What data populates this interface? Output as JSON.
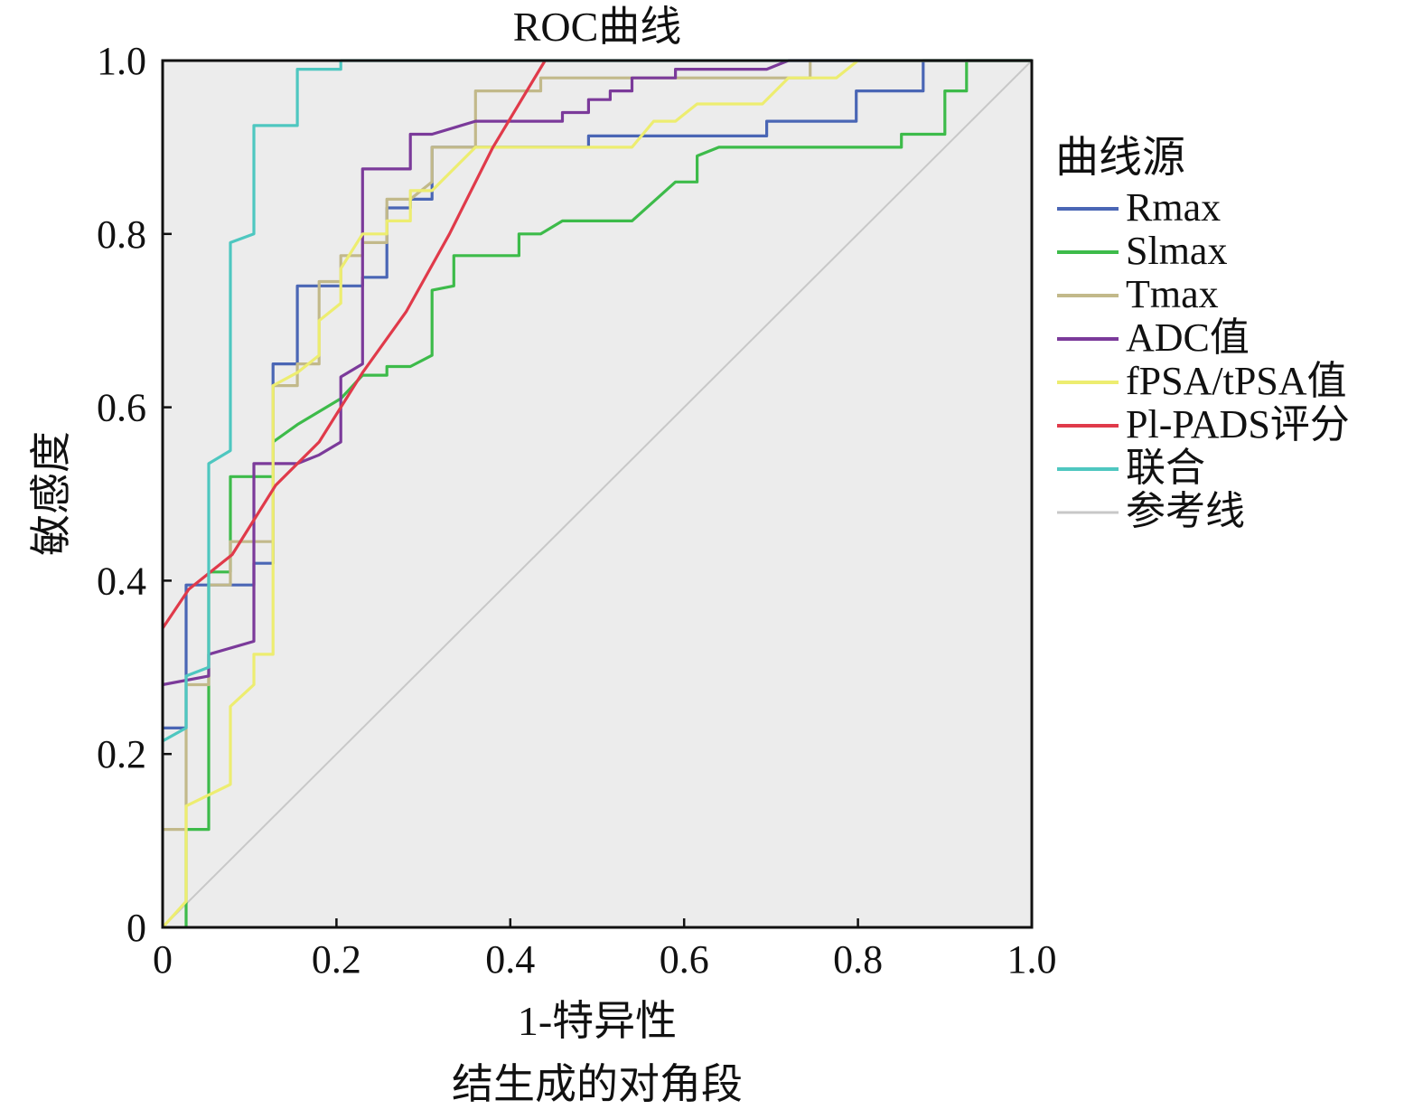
{
  "chart_data": {
    "type": "line",
    "title": "ROC曲线",
    "xlabel": "1-特异性",
    "xlabel_note": "结生成的对角段",
    "ylabel": "敏感度",
    "xlim": [
      0,
      1
    ],
    "ylim": [
      0,
      1
    ],
    "xticks": [
      {
        "value": 0,
        "label": "0"
      },
      {
        "value": 0.2,
        "label": "0.2"
      },
      {
        "value": 0.4,
        "label": "0.4"
      },
      {
        "value": 0.6,
        "label": "0.6"
      },
      {
        "value": 0.8,
        "label": "0.8"
      },
      {
        "value": 1.0,
        "label": "1.0"
      }
    ],
    "yticks": [
      {
        "value": 0,
        "label": "0"
      },
      {
        "value": 0.2,
        "label": "0.2"
      },
      {
        "value": 0.4,
        "label": "0.4"
      },
      {
        "value": 0.6,
        "label": "0.6"
      },
      {
        "value": 0.8,
        "label": "0.8"
      },
      {
        "value": 1.0,
        "label": "1.0"
      }
    ],
    "grid": false,
    "plot_background": "#ececec",
    "legend": {
      "title": "曲线源",
      "position": "right"
    },
    "series": [
      {
        "name": "Rmax",
        "color": "#4a66b5",
        "points": [
          [
            0,
            0.23
          ],
          [
            0.027,
            0.23
          ],
          [
            0.027,
            0.395
          ],
          [
            0.105,
            0.395
          ],
          [
            0.105,
            0.42
          ],
          [
            0.127,
            0.42
          ],
          [
            0.127,
            0.65
          ],
          [
            0.155,
            0.65
          ],
          [
            0.155,
            0.74
          ],
          [
            0.23,
            0.74
          ],
          [
            0.23,
            0.75
          ],
          [
            0.258,
            0.75
          ],
          [
            0.258,
            0.83
          ],
          [
            0.285,
            0.83
          ],
          [
            0.285,
            0.84
          ],
          [
            0.31,
            0.84
          ],
          [
            0.31,
            0.9
          ],
          [
            0.49,
            0.9
          ],
          [
            0.49,
            0.913
          ],
          [
            0.695,
            0.913
          ],
          [
            0.695,
            0.93
          ],
          [
            0.798,
            0.93
          ],
          [
            0.798,
            0.965
          ],
          [
            0.875,
            0.965
          ],
          [
            0.875,
            1.0
          ],
          [
            1.0,
            1.0
          ]
        ]
      },
      {
        "name": "Slmax",
        "color": "#3dbb4a",
        "points": [
          [
            0.027,
            0
          ],
          [
            0.027,
            0.113
          ],
          [
            0.053,
            0.113
          ],
          [
            0.053,
            0.41
          ],
          [
            0.078,
            0.41
          ],
          [
            0.078,
            0.52
          ],
          [
            0.127,
            0.52
          ],
          [
            0.127,
            0.56
          ],
          [
            0.155,
            0.58
          ],
          [
            0.205,
            0.61
          ],
          [
            0.23,
            0.637
          ],
          [
            0.258,
            0.637
          ],
          [
            0.258,
            0.647
          ],
          [
            0.285,
            0.647
          ],
          [
            0.31,
            0.66
          ],
          [
            0.31,
            0.735
          ],
          [
            0.335,
            0.74
          ],
          [
            0.335,
            0.775
          ],
          [
            0.41,
            0.775
          ],
          [
            0.41,
            0.8
          ],
          [
            0.435,
            0.8
          ],
          [
            0.46,
            0.815
          ],
          [
            0.54,
            0.815
          ],
          [
            0.59,
            0.86
          ],
          [
            0.615,
            0.86
          ],
          [
            0.615,
            0.89
          ],
          [
            0.64,
            0.9
          ],
          [
            0.85,
            0.9
          ],
          [
            0.85,
            0.915
          ],
          [
            0.9,
            0.915
          ],
          [
            0.9,
            0.93
          ],
          [
            0.9,
            0.965
          ],
          [
            0.925,
            0.965
          ],
          [
            0.925,
            1.0
          ],
          [
            1.0,
            1.0
          ]
        ]
      },
      {
        "name": "Tmax",
        "color": "#c2b98a",
        "points": [
          [
            0,
            0.113
          ],
          [
            0.027,
            0.113
          ],
          [
            0.027,
            0.28
          ],
          [
            0.053,
            0.28
          ],
          [
            0.053,
            0.395
          ],
          [
            0.078,
            0.395
          ],
          [
            0.078,
            0.445
          ],
          [
            0.127,
            0.445
          ],
          [
            0.127,
            0.625
          ],
          [
            0.155,
            0.625
          ],
          [
            0.155,
            0.65
          ],
          [
            0.18,
            0.65
          ],
          [
            0.18,
            0.745
          ],
          [
            0.205,
            0.745
          ],
          [
            0.205,
            0.775
          ],
          [
            0.23,
            0.775
          ],
          [
            0.23,
            0.79
          ],
          [
            0.258,
            0.79
          ],
          [
            0.258,
            0.84
          ],
          [
            0.285,
            0.84
          ],
          [
            0.31,
            0.86
          ],
          [
            0.31,
            0.9
          ],
          [
            0.36,
            0.9
          ],
          [
            0.36,
            0.965
          ],
          [
            0.435,
            0.965
          ],
          [
            0.435,
            0.98
          ],
          [
            0.745,
            0.98
          ],
          [
            0.745,
            1.0
          ],
          [
            1.0,
            1.0
          ]
        ]
      },
      {
        "name": "ADC值",
        "color": "#7b3a9a",
        "points": [
          [
            0,
            0.28
          ],
          [
            0.053,
            0.29
          ],
          [
            0.053,
            0.315
          ],
          [
            0.105,
            0.33
          ],
          [
            0.105,
            0.535
          ],
          [
            0.155,
            0.535
          ],
          [
            0.18,
            0.545
          ],
          [
            0.205,
            0.56
          ],
          [
            0.205,
            0.635
          ],
          [
            0.23,
            0.65
          ],
          [
            0.23,
            0.875
          ],
          [
            0.285,
            0.875
          ],
          [
            0.285,
            0.915
          ],
          [
            0.31,
            0.915
          ],
          [
            0.36,
            0.93
          ],
          [
            0.46,
            0.93
          ],
          [
            0.46,
            0.94
          ],
          [
            0.49,
            0.94
          ],
          [
            0.49,
            0.955
          ],
          [
            0.515,
            0.955
          ],
          [
            0.515,
            0.965
          ],
          [
            0.54,
            0.965
          ],
          [
            0.54,
            0.98
          ],
          [
            0.59,
            0.98
          ],
          [
            0.59,
            0.99
          ],
          [
            0.695,
            0.99
          ],
          [
            0.72,
            1.0
          ],
          [
            1.0,
            1.0
          ]
        ]
      },
      {
        "name": "fPSA/tPSA值",
        "color": "#eded70",
        "points": [
          [
            0,
            0
          ],
          [
            0.027,
            0.03
          ],
          [
            0.027,
            0.14
          ],
          [
            0.078,
            0.165
          ],
          [
            0.078,
            0.255
          ],
          [
            0.105,
            0.28
          ],
          [
            0.105,
            0.315
          ],
          [
            0.127,
            0.315
          ],
          [
            0.127,
            0.625
          ],
          [
            0.155,
            0.64
          ],
          [
            0.18,
            0.66
          ],
          [
            0.18,
            0.7
          ],
          [
            0.205,
            0.72
          ],
          [
            0.205,
            0.76
          ],
          [
            0.23,
            0.8
          ],
          [
            0.258,
            0.8
          ],
          [
            0.258,
            0.815
          ],
          [
            0.285,
            0.815
          ],
          [
            0.285,
            0.85
          ],
          [
            0.31,
            0.85
          ],
          [
            0.36,
            0.9
          ],
          [
            0.54,
            0.9
          ],
          [
            0.565,
            0.93
          ],
          [
            0.59,
            0.93
          ],
          [
            0.615,
            0.95
          ],
          [
            0.69,
            0.95
          ],
          [
            0.72,
            0.98
          ],
          [
            0.775,
            0.98
          ],
          [
            0.8,
            1.0
          ],
          [
            1.0,
            1.0
          ]
        ]
      },
      {
        "name": "Pl-PADS评分",
        "color": "#e03a4a",
        "points": [
          [
            0,
            0.345
          ],
          [
            0.03,
            0.39
          ],
          [
            0.08,
            0.43
          ],
          [
            0.13,
            0.51
          ],
          [
            0.18,
            0.56
          ],
          [
            0.23,
            0.64
          ],
          [
            0.28,
            0.71
          ],
          [
            0.33,
            0.8
          ],
          [
            0.38,
            0.9
          ],
          [
            0.44,
            1.0
          ]
        ]
      },
      {
        "name": "联合",
        "color": "#4ec7c0",
        "points": [
          [
            0,
            0.215
          ],
          [
            0.027,
            0.23
          ],
          [
            0.027,
            0.29
          ],
          [
            0.053,
            0.3
          ],
          [
            0.053,
            0.535
          ],
          [
            0.078,
            0.55
          ],
          [
            0.078,
            0.79
          ],
          [
            0.105,
            0.8
          ],
          [
            0.105,
            0.925
          ],
          [
            0.155,
            0.925
          ],
          [
            0.155,
            0.99
          ],
          [
            0.205,
            0.99
          ],
          [
            0.205,
            1.0
          ],
          [
            1.0,
            1.0
          ]
        ]
      },
      {
        "name": "参考线",
        "color": "#c8c8c8",
        "points": [
          [
            0,
            0
          ],
          [
            1,
            1
          ]
        ]
      }
    ]
  }
}
